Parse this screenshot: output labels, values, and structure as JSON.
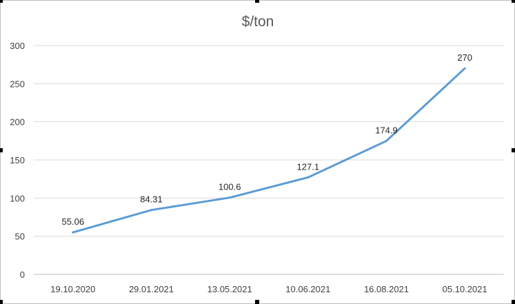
{
  "chart_data": {
    "type": "line",
    "title": "$/ton",
    "xlabel": "",
    "ylabel": "",
    "categories": [
      "19.10.2020",
      "29.01.2021",
      "13.05.2021",
      "10.06.2021",
      "16.08.2021",
      "05.10.2021"
    ],
    "series": [
      {
        "values": [
          55.06,
          84.31,
          100.6,
          127.1,
          174.9,
          270
        ],
        "color": "#5b9bd5"
      }
    ],
    "data_labels": [
      "55.06",
      "84.31",
      "100.6",
      "127.1",
      "174.9",
      "270"
    ],
    "ylim": [
      0,
      300
    ],
    "yticks": [
      0,
      50,
      100,
      150,
      200,
      250,
      300
    ],
    "grid": true,
    "legend": "none"
  }
}
